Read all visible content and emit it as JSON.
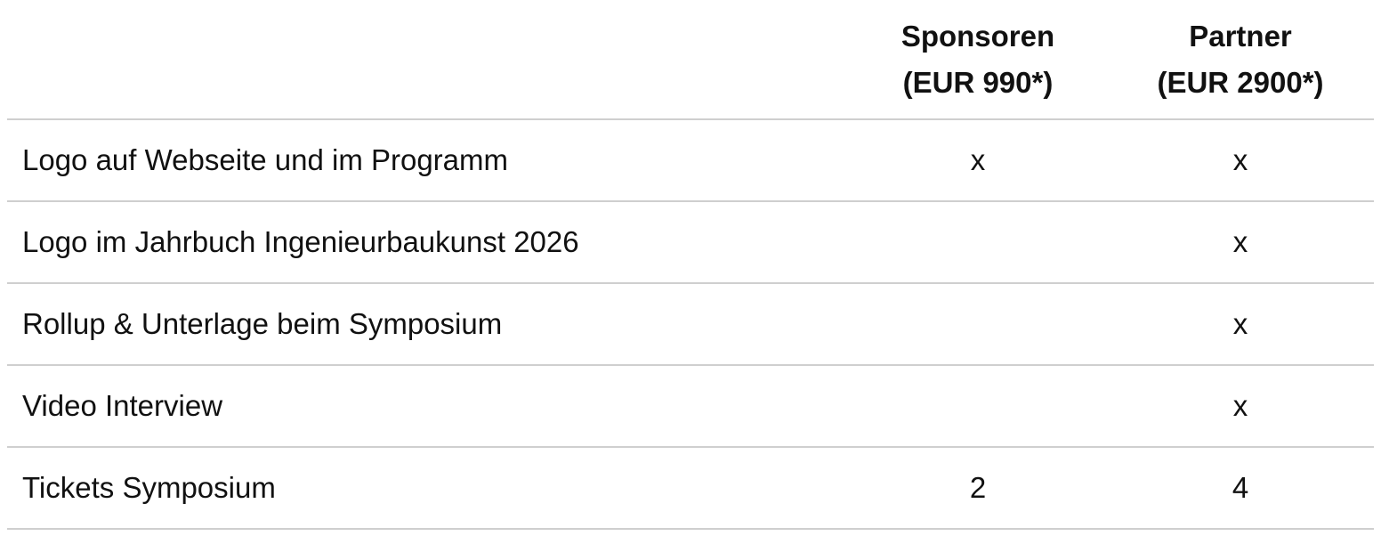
{
  "table": {
    "headers": [
      {
        "line1": "",
        "line2": ""
      },
      {
        "line1": "Sponsoren",
        "line2": "(EUR 990*)"
      },
      {
        "line1": "Partner",
        "line2": "(EUR 2900*)"
      }
    ],
    "rows": [
      {
        "feature": "Logo auf Webseite und im Programm",
        "sponsoren": "x",
        "partner": "x"
      },
      {
        "feature": "Logo im Jahrbuch Ingenieurbaukunst 2026",
        "sponsoren": "",
        "partner": "x"
      },
      {
        "feature": "Rollup & Unterlage beim Symposium",
        "sponsoren": "",
        "partner": "x"
      },
      {
        "feature": "Video Interview",
        "sponsoren": "",
        "partner": "x"
      },
      {
        "feature": "Tickets Symposium",
        "sponsoren": "2",
        "partner": "4"
      }
    ]
  }
}
